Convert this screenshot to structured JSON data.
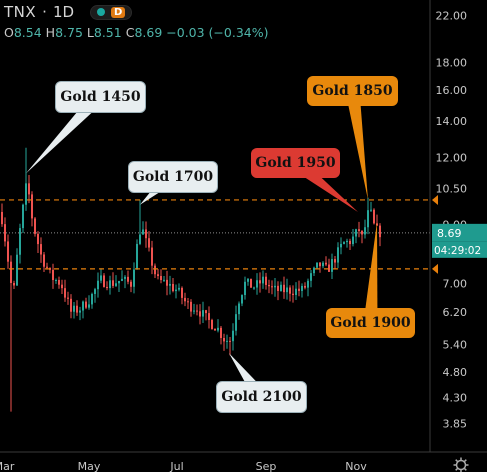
{
  "header": {
    "symbol": "TNX",
    "interval": "1D",
    "badge": "D"
  },
  "ohlc": {
    "o_key": "O",
    "o": "8.54",
    "h_key": "H",
    "h": "8.75",
    "l_key": "L",
    "l": "8.51",
    "c_key": "C",
    "c": "8.69",
    "change": "−0.03 (−0.34%)"
  },
  "price_tags": {
    "last": "8.69",
    "countdown": "04:29:02"
  },
  "annotations": [
    {
      "text": "Gold 1450",
      "style": "light",
      "target_x": 26,
      "target_y": 11.2
    },
    {
      "text": "Gold 1700",
      "style": "light",
      "target_x": 140,
      "target_y": 9.8
    },
    {
      "text": "Gold 2100",
      "style": "light",
      "target_x": 229,
      "target_y": 5.2
    },
    {
      "text": "Gold 1950",
      "style": "red",
      "target_x": 358,
      "target_y": 9.5
    },
    {
      "text": "Gold 1850",
      "style": "orange",
      "target_x": 368,
      "target_y": 10.0
    },
    {
      "text": "Gold 1900",
      "style": "orange",
      "target_x": 377,
      "target_y": 9.1
    }
  ],
  "chart_data": {
    "type": "candlestick",
    "title": "",
    "xlabel": "",
    "ylabel": "",
    "y_scale": "log",
    "ylim": [
      3.65,
      22.6
    ],
    "y_ticks": [
      "22.00",
      "18.00",
      "16.00",
      "14.00",
      "12.00",
      "10.50",
      "9.00",
      "7.00",
      "6.20",
      "5.40",
      "4.80",
      "4.30",
      "3.85"
    ],
    "x_ticks": [
      "Mar",
      "May",
      "Jul",
      "Sep",
      "Nov"
    ],
    "horizontal_lines": [
      10.0,
      7.45
    ],
    "last_price": 8.69,
    "grid": false,
    "colors": {
      "up": "#26a69a",
      "down": "#ef5350",
      "level_line": "#e8800c",
      "price_line": "#8c8c8c"
    }
  },
  "footer": {
    "settings_icon": "gear-icon"
  }
}
